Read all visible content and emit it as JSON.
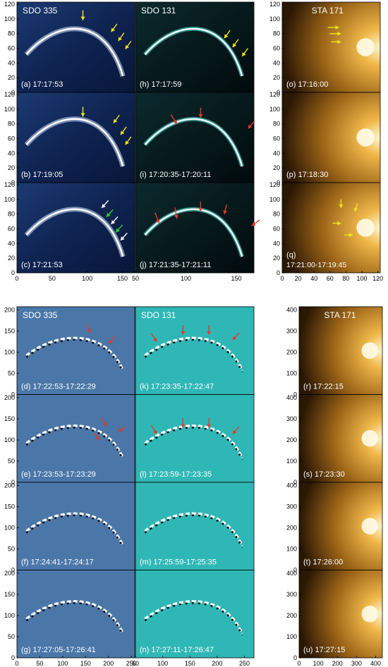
{
  "figure": {
    "top_section": {
      "columns": [
        {
          "label": "SDO 335",
          "colormap": "blue",
          "panels": [
            {
              "id": "a",
              "label": "(a) 17:17:53"
            },
            {
              "id": "b",
              "label": "(b) 17:19:05"
            },
            {
              "id": "c",
              "label": "(c) 17:21:53"
            }
          ],
          "x_ticks": [
            "0",
            "50",
            "100",
            "150"
          ],
          "y_ticks": [
            "0",
            "20",
            "40",
            "60",
            "80",
            "100",
            "120"
          ]
        },
        {
          "label": "SDO 131",
          "colormap": "cyan",
          "panels": [
            {
              "id": "h",
              "label": "(h) 17:17:59"
            },
            {
              "id": "i",
              "label": "(i) 17:20:35-17:20:11"
            },
            {
              "id": "j",
              "label": "(j) 17:21:35-17:21:11"
            }
          ],
          "x_ticks": [
            "50",
            "100",
            "150"
          ]
        },
        {
          "label": "STA 171",
          "colormap": "gold",
          "panels": [
            {
              "id": "o",
              "label": "(o) 17:16:00"
            },
            {
              "id": "p",
              "label": "(p) 17:18:30"
            },
            {
              "id": "q",
              "label": "(q)",
              "sublabel": "17:21:00-17:19:45"
            }
          ],
          "x_ticks": [
            "0",
            "20",
            "40",
            "60",
            "80",
            "100",
            "120"
          ],
          "y_ticks": [
            "0",
            "20",
            "40",
            "60",
            "80",
            "100",
            "120"
          ]
        }
      ]
    },
    "bottom_section": {
      "columns": [
        {
          "label": "SDO 335",
          "colormap": "blue-diff",
          "panels": [
            {
              "id": "d",
              "label": "(d) 17:22:53-17:22:29"
            },
            {
              "id": "e",
              "label": "(e) 17:23:53-17:23:29"
            },
            {
              "id": "f",
              "label": "(f) 17:24:41-17:24:17"
            },
            {
              "id": "g",
              "label": "(g) 17:27:05-17:26:41"
            }
          ],
          "x_ticks": [
            "0",
            "50",
            "100",
            "150",
            "200",
            "250"
          ],
          "y_ticks": [
            "0",
            "50",
            "100",
            "150",
            "200"
          ]
        },
        {
          "label": "SDO 131",
          "colormap": "cyan-diff",
          "panels": [
            {
              "id": "k",
              "label": "(k) 17:23:35-17:22:47"
            },
            {
              "id": "l",
              "label": "(l) 17:23:59-17:23:35"
            },
            {
              "id": "m",
              "label": "(m) 17:25:59-17:25:35"
            },
            {
              "id": "n",
              "label": "(n) 17:27:11-17:26:47"
            }
          ],
          "x_ticks": [
            "50",
            "100",
            "150",
            "200",
            "250"
          ]
        },
        {
          "label": "STA 171",
          "colormap": "gold",
          "panels": [
            {
              "id": "r",
              "label": "(r) 17:22:15"
            },
            {
              "id": "s",
              "label": "(s) 17:23:30"
            },
            {
              "id": "t",
              "label": "(t) 17:26:00"
            },
            {
              "id": "u",
              "label": "(u) 17:27:15"
            }
          ],
          "x_ticks": [
            "0",
            "100",
            "200",
            "300",
            "400"
          ],
          "y_ticks": [
            "0",
            "100",
            "200",
            "300",
            "400"
          ]
        }
      ]
    },
    "arrow_colors": {
      "yellow": "#f2e21a",
      "red": "#e23a2c",
      "white": "#ffffff",
      "green": "#2bd02b"
    }
  }
}
